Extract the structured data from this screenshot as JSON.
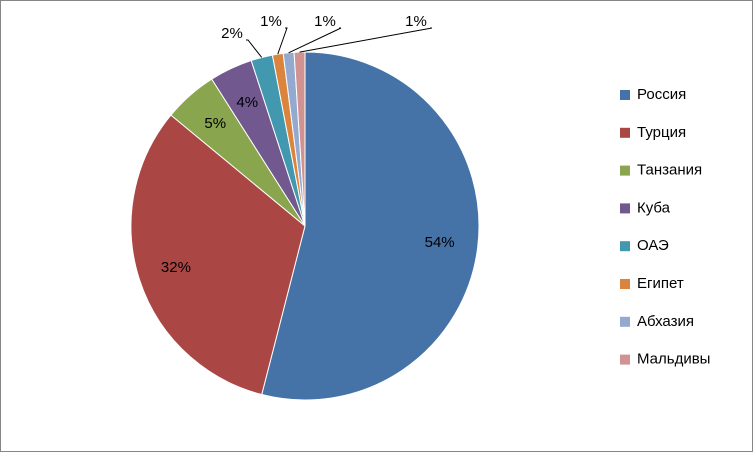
{
  "chart_data": {
    "type": "pie",
    "categories": [
      "Россия",
      "Турция",
      "Танзания",
      "Куба",
      "ОАЭ",
      "Египет",
      "Абхазия",
      "Мальдивы"
    ],
    "values": [
      54,
      32,
      5,
      4,
      2,
      1,
      1,
      1
    ],
    "value_labels": [
      "54%",
      "32%",
      "5%",
      "4%",
      "2%",
      "1%",
      "1%",
      "1%"
    ],
    "colors": [
      "#4572A7",
      "#AA4643",
      "#89A54E",
      "#71588F",
      "#4198AF",
      "#DB843D",
      "#93A9CF",
      "#D19392"
    ],
    "legend": "right"
  }
}
